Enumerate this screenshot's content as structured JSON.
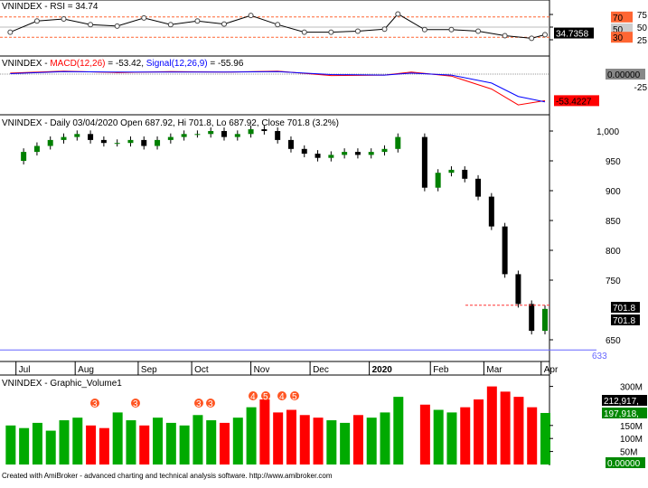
{
  "footer": "Created with AmiBroker - advanced charting and technical analysis software. http://www.amibroker.com",
  "colors": {
    "up": "#008000",
    "down": "#000000",
    "vol_up": "#00aa00",
    "vol_down": "#ff0000",
    "rsi_band": "#ff6633",
    "macd": "#ff0000",
    "signal": "#0000ff",
    "support": "#6666ff"
  },
  "chart_data": [
    {
      "type": "line",
      "panel": "rsi",
      "title_prefix": "VNINDEX - ",
      "title": "RSI = 34.74",
      "ylim": [
        0,
        100
      ],
      "bands": [
        30,
        50,
        70
      ],
      "ticks": [
        "75",
        "50",
        "25"
      ],
      "band_labels": [
        "70",
        "50",
        "30"
      ],
      "last_label": "34.7358",
      "dates": [
        "2019-06-28",
        "2019-07-12",
        "2019-07-26",
        "2019-08-09",
        "2019-08-23",
        "2019-09-06",
        "2019-09-20",
        "2019-10-04",
        "2019-10-18",
        "2019-11-01",
        "2019-11-15",
        "2019-11-29",
        "2019-12-13",
        "2019-12-27",
        "2020-01-10",
        "2020-01-17",
        "2020-01-31",
        "2020-02-14",
        "2020-02-28",
        "2020-03-13",
        "2020-03-27",
        "2020-04-03"
      ],
      "values": [
        40,
        62,
        66,
        55,
        52,
        68,
        55,
        62,
        56,
        73,
        55,
        40,
        40,
        42,
        46,
        76,
        45,
        45,
        42,
        33,
        28,
        35
      ]
    },
    {
      "type": "line",
      "panel": "macd",
      "title_prefix": "VNINDEX - ",
      "macd_label": "MACD(12,26)",
      "macd_value": " = -53.42, ",
      "signal_label": "Signal(12,26,9)",
      "signal_value": " = -55.96",
      "ticks": [
        "-25"
      ],
      "zero_label": "0.00000",
      "last_label": "-53.4227",
      "dates": [
        "2019-06-28",
        "2019-07-26",
        "2019-08-23",
        "2019-09-20",
        "2019-10-18",
        "2019-11-15",
        "2019-12-13",
        "2020-01-10",
        "2020-01-24",
        "2020-02-14",
        "2020-03-06",
        "2020-03-20",
        "2020-04-03"
      ],
      "macd": [
        2,
        6,
        3,
        5,
        4,
        6,
        -3,
        -2,
        4,
        -4,
        -30,
        -62,
        -53.42
      ],
      "signal": [
        1,
        5,
        4,
        4,
        4,
        5,
        -1,
        -2,
        2,
        -2,
        -18,
        -45,
        -55.96
      ]
    },
    {
      "type": "candlestick",
      "panel": "price",
      "title_prefix": "VNINDEX - ",
      "title": "Daily 03/04/2020 Open 687.92, Hi 701.8, Lo 687.92, Close 701.8 (3.2%)",
      "ticks": [
        "1,000",
        "950",
        "900",
        "850",
        "800",
        "750",
        "650"
      ],
      "last_labels": [
        "701.8",
        "701.8"
      ],
      "support_level": 633,
      "support_label": "633",
      "resistance_level": 708,
      "x_tick_labels": [
        "Jul",
        "Aug",
        "Sep",
        "Oct",
        "Nov",
        "Dec",
        "2020",
        "Feb",
        "Mar",
        "Apr"
      ],
      "dates": [
        "2019-06-28",
        "2019-07-05",
        "2019-07-12",
        "2019-07-19",
        "2019-07-26",
        "2019-08-02",
        "2019-08-09",
        "2019-08-16",
        "2019-08-23",
        "2019-08-30",
        "2019-09-06",
        "2019-09-13",
        "2019-09-20",
        "2019-09-27",
        "2019-10-04",
        "2019-10-11",
        "2019-10-18",
        "2019-10-25",
        "2019-11-01",
        "2019-11-08",
        "2019-11-15",
        "2019-11-22",
        "2019-11-29",
        "2019-12-06",
        "2019-12-13",
        "2019-12-20",
        "2019-12-27",
        "2020-01-03",
        "2020-01-10",
        "2020-01-17",
        "2020-01-31",
        "2020-02-07",
        "2020-02-14",
        "2020-02-21",
        "2020-02-28",
        "2020-03-06",
        "2020-03-13",
        "2020-03-20",
        "2020-03-27",
        "2020-04-03"
      ],
      "close": [
        950,
        965,
        975,
        985,
        990,
        995,
        985,
        980,
        980,
        985,
        975,
        985,
        990,
        995,
        995,
        1000,
        990,
        995,
        1003,
        1000,
        985,
        970,
        962,
        955,
        960,
        965,
        960,
        965,
        970,
        990,
        905,
        930,
        935,
        920,
        890,
        840,
        760,
        710,
        665,
        701.8
      ]
    },
    {
      "type": "bar",
      "panel": "volume",
      "title_prefix": "VNINDEX - ",
      "title": "Graphic_Volume1",
      "ticks": [
        "300M",
        "150M",
        "100M",
        "50M"
      ],
      "last_labels": [
        "212,917,",
        "197,918,",
        "0.00000"
      ],
      "markers": [
        "3",
        "3",
        "3",
        "3",
        "4",
        "5",
        "4",
        "5"
      ],
      "values_millions": [
        150,
        140,
        160,
        130,
        170,
        180,
        150,
        140,
        200,
        170,
        150,
        180,
        160,
        150,
        190,
        170,
        160,
        180,
        220,
        250,
        200,
        210,
        190,
        180,
        170,
        160,
        190,
        180,
        200,
        260,
        230,
        210,
        200,
        220,
        250,
        300,
        280,
        260,
        220,
        198
      ]
    }
  ]
}
